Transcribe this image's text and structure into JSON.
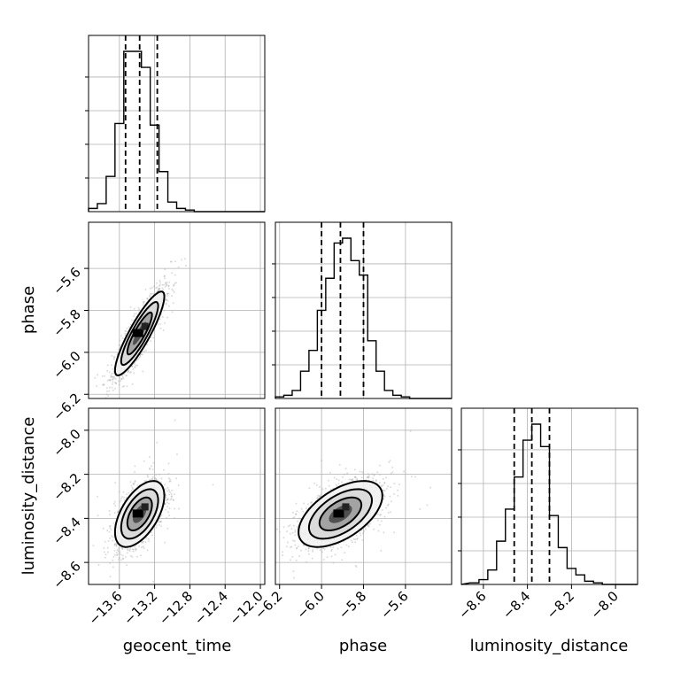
{
  "chart_data": {
    "type": "corner",
    "parameters": [
      "geocent_time",
      "phase",
      "luminosity_distance"
    ],
    "labels": {
      "x": [
        "geocent_time",
        "phase",
        "luminosity_distance"
      ],
      "y_row1": "phase",
      "y_row2": "luminosity_distance"
    },
    "ranges": {
      "geocent_time": [
        -13.95,
        -11.95
      ],
      "phase": [
        -6.22,
        -5.38
      ],
      "luminosity_distance": [
        -8.7,
        -7.9
      ]
    },
    "ticks": {
      "geocent_time": {
        "values": [
          -13.6,
          -13.2,
          -12.8,
          -12.4,
          -12.0
        ],
        "labels": [
          "−13.6",
          "−13.2",
          "−12.8",
          "−12.4",
          "−12.0"
        ]
      },
      "phase": {
        "values": [
          -6.2,
          -6.0,
          -5.8,
          -5.6
        ],
        "labels": [
          "−6.2",
          "−6.0",
          "−5.8",
          "−5.6"
        ]
      },
      "luminosity_distance": {
        "values": [
          -8.6,
          -8.4,
          -8.2,
          -8.0
        ],
        "labels": [
          "−8.6",
          "−8.4",
          "−8.2",
          "−8.0"
        ]
      }
    },
    "quantiles": {
      "geocent_time": [
        -13.53,
        -13.37,
        -13.17
      ],
      "phase": [
        -6.0,
        -5.91,
        -5.8
      ],
      "luminosity_distance": [
        -8.46,
        -8.38,
        -8.3
      ]
    },
    "histograms": {
      "geocent_time": {
        "edges": [
          -13.95,
          -13.85,
          -13.75,
          -13.65,
          -13.55,
          -13.45,
          -13.35,
          -13.25,
          -13.15,
          -13.05,
          -12.95,
          -12.85,
          -12.75,
          -12.65,
          -12.55
        ],
        "counts": [
          2,
          5,
          22,
          55,
          100,
          100,
          90,
          54,
          25,
          6,
          2,
          1,
          0,
          0
        ]
      },
      "phase": {
        "edges": [
          -6.22,
          -6.18,
          -6.14,
          -6.1,
          -6.06,
          -6.02,
          -5.98,
          -5.94,
          -5.9,
          -5.86,
          -5.82,
          -5.78,
          -5.74,
          -5.7,
          -5.66,
          -5.62,
          -5.58,
          -5.54
        ],
        "counts": [
          1,
          2,
          5,
          17,
          30,
          55,
          75,
          97,
          100,
          86,
          77,
          36,
          17,
          5,
          2,
          1,
          0
        ]
      },
      "luminosity_distance": {
        "edges": [
          -8.66,
          -8.62,
          -8.58,
          -8.54,
          -8.5,
          -8.46,
          -8.42,
          -8.38,
          -8.34,
          -8.3,
          -8.26,
          -8.22,
          -8.18,
          -8.14,
          -8.1,
          -8.06,
          -8.02
        ],
        "counts": [
          1,
          3,
          9,
          27,
          47,
          67,
          90,
          100,
          86,
          43,
          23,
          10,
          6,
          2,
          1,
          0
        ]
      }
    },
    "joint": [
      {
        "x": "geocent_time",
        "y": "phase",
        "mean": [
          -13.37,
          -5.91
        ],
        "sd": [
          0.14,
          0.1
        ],
        "corr": 0.88
      },
      {
        "x": "geocent_time",
        "y": "luminosity_distance",
        "mean": [
          -13.37,
          -8.38
        ],
        "sd": [
          0.14,
          0.075
        ],
        "corr": 0.55
      },
      {
        "x": "phase",
        "y": "luminosity_distance",
        "mean": [
          -5.91,
          -8.38
        ],
        "sd": [
          0.1,
          0.075
        ],
        "corr": 0.55
      }
    ],
    "grid": true,
    "line_color": "#000000",
    "point_color": "#9a9a9a"
  }
}
